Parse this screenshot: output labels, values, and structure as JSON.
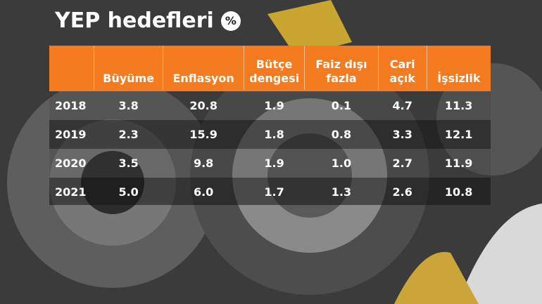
{
  "header": {
    "title": "YEP hedefleri",
    "unit": "%"
  },
  "table": {
    "columns": [
      "Büyüme",
      "Enflasyon",
      "Bütçe dengesi",
      "Faiz dışı fazla",
      "Cari açık",
      "İşsizlik"
    ],
    "rows": [
      [
        "2018",
        "3.8",
        "20.8",
        "1.9",
        "0.1",
        "4.7",
        "11.3"
      ],
      [
        "2019",
        "2.3",
        "15.9",
        "1.8",
        "0.8",
        "3.3",
        "12.1"
      ],
      [
        "2020",
        "3.5",
        "9.8",
        "1.9",
        "1.0",
        "2.7",
        "11.9"
      ],
      [
        "2021",
        "5.0",
        "6.0",
        "1.7",
        "1.3",
        "2.6",
        "10.8"
      ]
    ]
  }
}
